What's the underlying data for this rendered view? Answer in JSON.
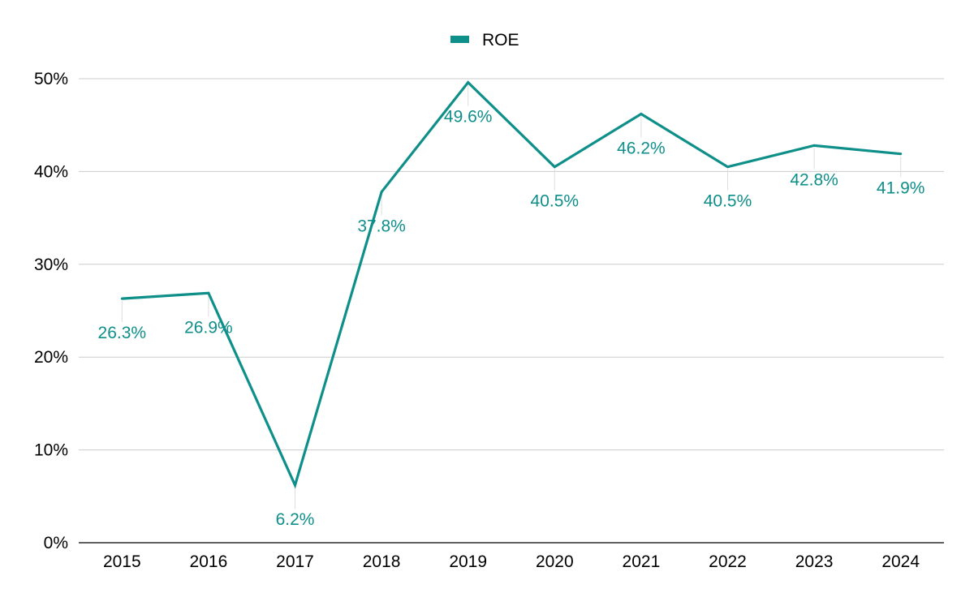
{
  "chart_data": {
    "type": "line",
    "title": "",
    "xlabel": "",
    "ylabel": "",
    "categories": [
      "2015",
      "2016",
      "2017",
      "2018",
      "2019",
      "2020",
      "2021",
      "2022",
      "2023",
      "2024"
    ],
    "series": [
      {
        "name": "ROE",
        "values": [
          26.3,
          26.9,
          6.2,
          37.8,
          49.6,
          40.5,
          46.2,
          40.5,
          42.8,
          41.9
        ],
        "labels": [
          "26.3%",
          "26.9%",
          "6.2%",
          "37.8%",
          "49.6%",
          "40.5%",
          "46.2%",
          "40.5%",
          "42.8%",
          "41.9%"
        ],
        "color": "#0f8f8a"
      }
    ],
    "ylim": [
      0,
      50
    ],
    "yticks": [
      "0%",
      "10%",
      "20%",
      "30%",
      "40%",
      "50%"
    ],
    "grid": true,
    "legend": "top-center"
  },
  "colors": {
    "series": "#0f8f8a",
    "grid": "#cccccc",
    "axis": "#000000",
    "text": "#000000",
    "leader": "#dddddd"
  }
}
